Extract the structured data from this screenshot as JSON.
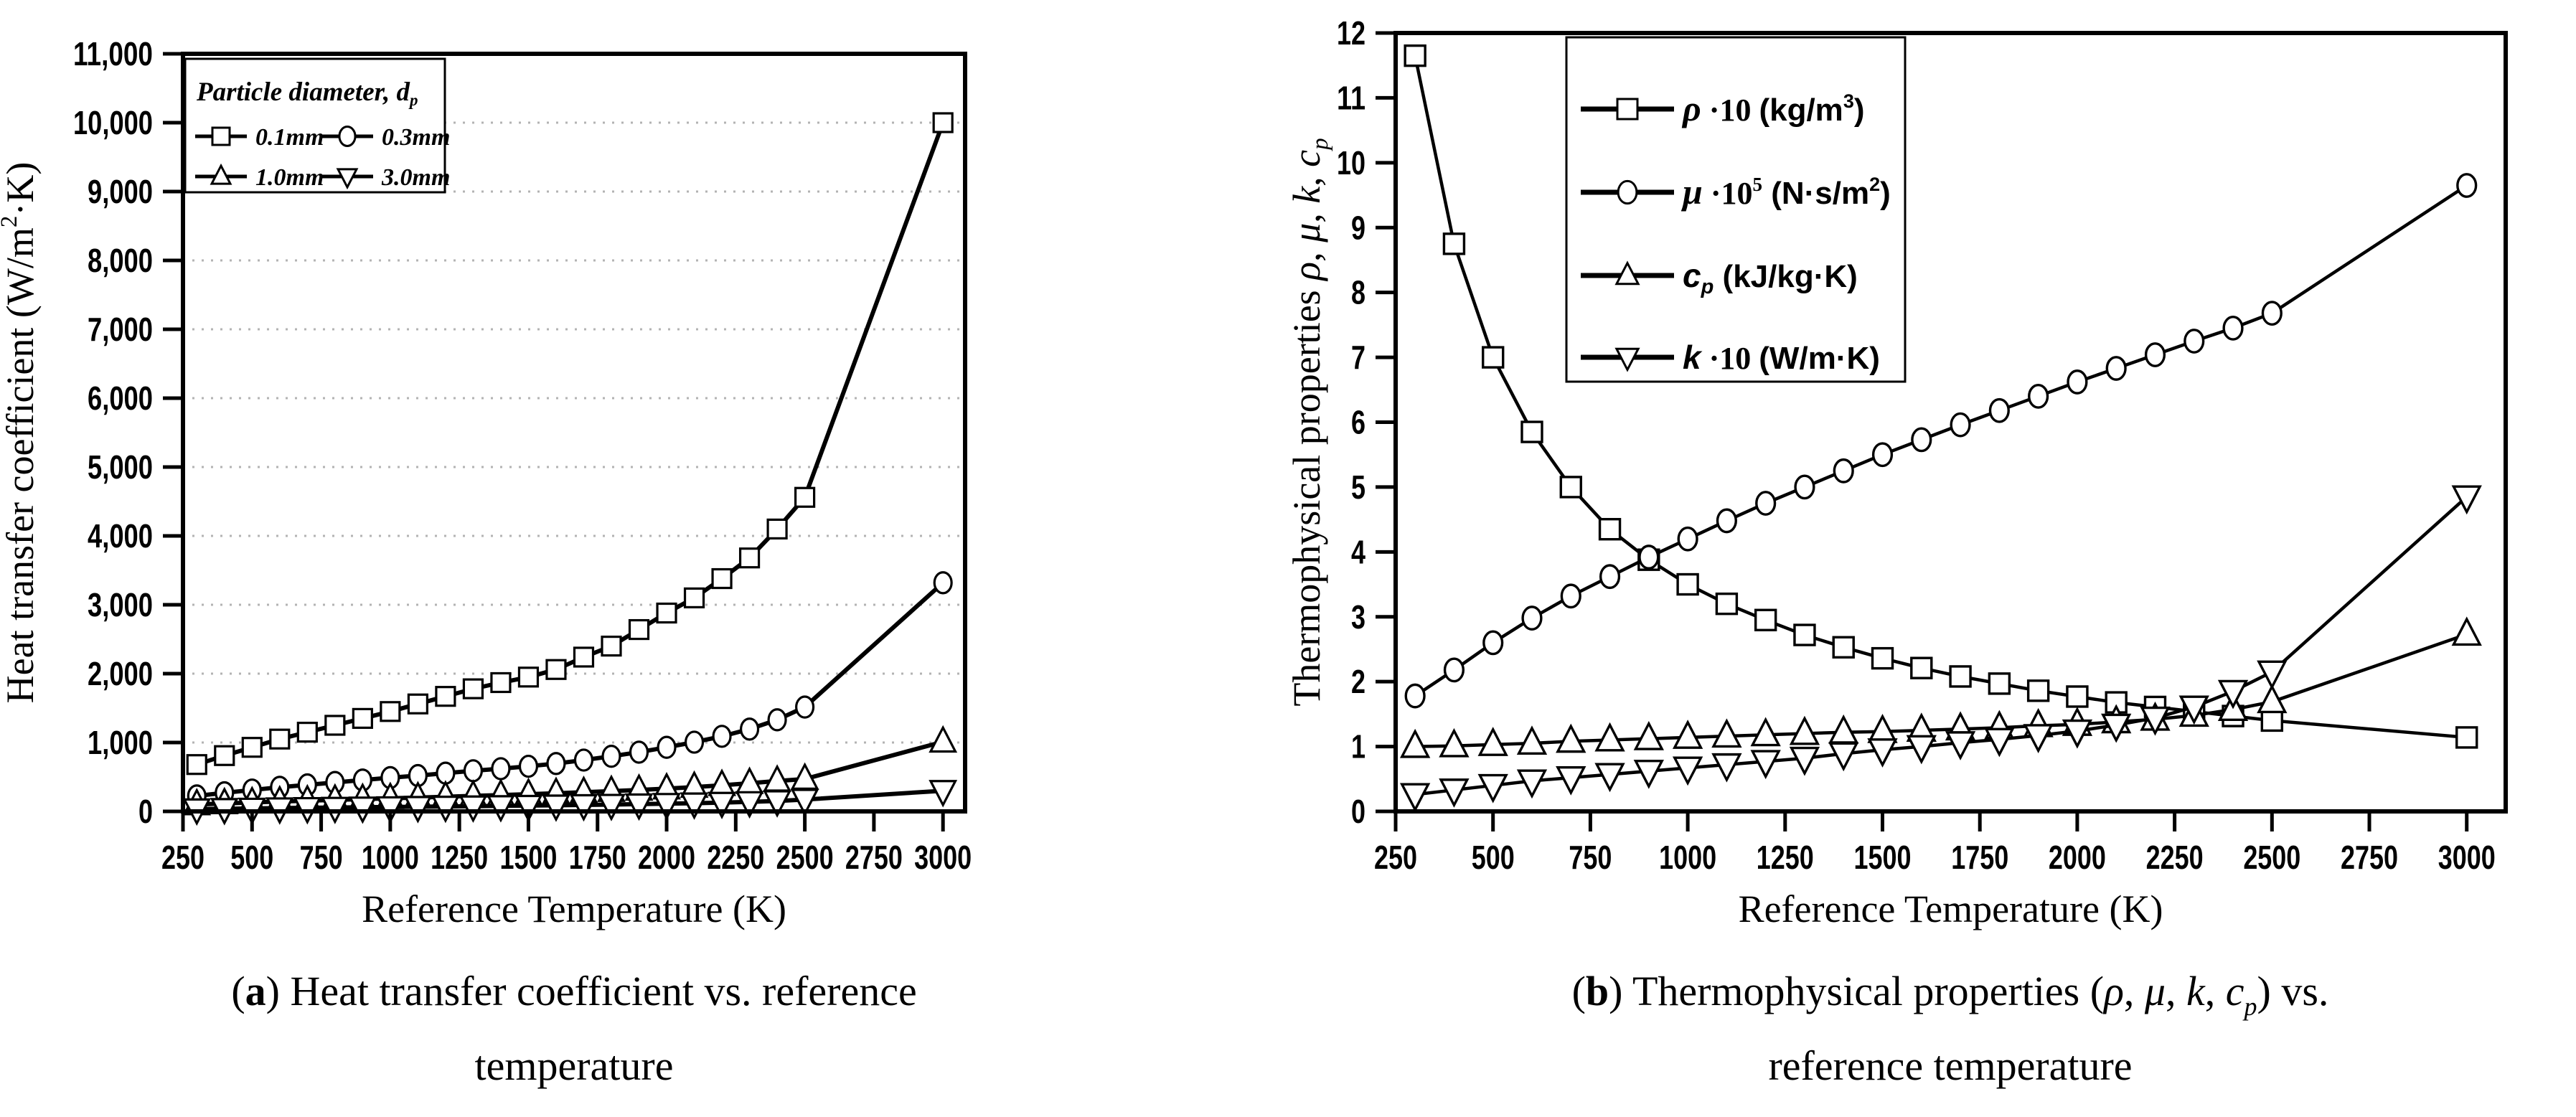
{
  "figure": {
    "background": "#ffffff",
    "ink_color": "#000000",
    "gridline_color": "#b3b3b3",
    "panels": [
      {
        "id": "a",
        "caption": {
          "line1_parts": [
            {
              "t": "("
            },
            {
              "t": "a",
              "b": true
            },
            {
              "t": ") Heat transfer coefficient vs. reference"
            }
          ],
          "line2": "temperature"
        }
      },
      {
        "id": "b",
        "caption": {
          "line1_parts": [
            {
              "t": "("
            },
            {
              "t": "b",
              "b": true
            },
            {
              "t": ") Thermophysical properties ("
            },
            {
              "t": "ρ",
              "i": true
            },
            {
              "t": ", "
            },
            {
              "t": "μ",
              "i": true
            },
            {
              "t": ", "
            },
            {
              "t": "k",
              "i": true
            },
            {
              "t": ", "
            },
            {
              "t": "c",
              "i": true
            },
            {
              "t": "p",
              "i": true,
              "sub": true
            },
            {
              "t": ") vs."
            }
          ],
          "line2": "reference temperature"
        }
      }
    ]
  },
  "chart_data": [
    {
      "id": "a",
      "type": "line",
      "title": "",
      "xlabel": "Reference Temperature (K)",
      "ylabel_parts": [
        {
          "t": "Heat transfer coefficient (W/m"
        },
        {
          "t": "2",
          "sup": true
        },
        {
          "t": "·K)"
        }
      ],
      "xlim": [
        250,
        3080
      ],
      "ylim": [
        0,
        11000
      ],
      "xticks": [
        250,
        500,
        750,
        1000,
        1250,
        1500,
        1750,
        2000,
        2250,
        2500,
        2750,
        3000
      ],
      "yticks": [
        {
          "v": 0,
          "label": "0"
        },
        {
          "v": 1000,
          "label": "1,000"
        },
        {
          "v": 2000,
          "label": "2,000"
        },
        {
          "v": 3000,
          "label": "3,000"
        },
        {
          "v": 4000,
          "label": "4,000"
        },
        {
          "v": 5000,
          "label": "5,000"
        },
        {
          "v": 6000,
          "label": "6,000"
        },
        {
          "v": 7000,
          "label": "7,000"
        },
        {
          "v": 8000,
          "label": "8,000"
        },
        {
          "v": 9000,
          "label": "9,000"
        },
        {
          "v": 10000,
          "label": "10,000"
        },
        {
          "v": 11000,
          "label": "11,000"
        }
      ],
      "grid": "horizontal-dotted",
      "grid_y": [
        1000,
        2000,
        3000,
        4000,
        5000,
        6000,
        7000,
        8000,
        9000,
        10000
      ],
      "legend_position": "top-left",
      "legend": {
        "title_parts": [
          {
            "t": "Particle diameter, d"
          },
          {
            "t": "p",
            "sub": true
          }
        ],
        "entries": [
          {
            "label": "0.1mm",
            "marker": "square"
          },
          {
            "label": "0.3mm",
            "marker": "circle"
          },
          {
            "label": "1.0mm",
            "marker": "triangle-up"
          },
          {
            "label": "3.0mm",
            "marker": "triangle-down"
          }
        ]
      },
      "x": [
        300,
        400,
        500,
        600,
        700,
        800,
        900,
        1000,
        1100,
        1200,
        1300,
        1400,
        1500,
        1600,
        1700,
        1800,
        1900,
        2000,
        2100,
        2200,
        2300,
        2400,
        2500,
        3000
      ],
      "series": [
        {
          "name": "0.1mm",
          "marker": "square",
          "values": [
            680,
            810,
            930,
            1050,
            1150,
            1250,
            1350,
            1450,
            1560,
            1670,
            1780,
            1870,
            1950,
            2060,
            2240,
            2400,
            2640,
            2880,
            3100,
            3380,
            3680,
            4100,
            4560,
            10000
          ]
        },
        {
          "name": "0.3mm",
          "marker": "circle",
          "values": [
            225,
            270,
            310,
            350,
            385,
            420,
            455,
            490,
            520,
            555,
            590,
            620,
            655,
            695,
            745,
            800,
            860,
            930,
            1005,
            1090,
            1195,
            1330,
            1515,
            3320
          ]
        },
        {
          "name": "1.0mm",
          "marker": "triangle-up",
          "values": [
            100,
            115,
            130,
            143,
            155,
            167,
            178,
            190,
            201,
            213,
            225,
            237,
            250,
            264,
            278,
            294,
            311,
            330,
            353,
            379,
            409,
            442,
            470,
            1010
          ]
        },
        {
          "name": "3.0mm",
          "marker": "triangle-down",
          "values": [
            33,
            38,
            43,
            48,
            52,
            56,
            60,
            64,
            68,
            72,
            76,
            80,
            84,
            89,
            94,
            99,
            105,
            112,
            119,
            128,
            138,
            151,
            172,
            300
          ]
        }
      ]
    },
    {
      "id": "b",
      "type": "line",
      "title": "",
      "xlabel": "Reference Temperature (K)",
      "ylabel_parts": [
        {
          "t": "Thermophysical properties "
        },
        {
          "t": "ρ",
          "i": true
        },
        {
          "t": ", "
        },
        {
          "t": "μ",
          "i": true
        },
        {
          "t": ", "
        },
        {
          "t": "k",
          "i": true
        },
        {
          "t": ", "
        },
        {
          "t": "c",
          "i": true
        },
        {
          "t": "p",
          "i": true,
          "sub": true
        }
      ],
      "xlim": [
        250,
        3100
      ],
      "ylim": [
        0,
        12
      ],
      "xticks": [
        250,
        500,
        750,
        1000,
        1250,
        1500,
        1750,
        2000,
        2250,
        2500,
        2750,
        3000
      ],
      "yticks": [
        {
          "v": 0,
          "label": "0"
        },
        {
          "v": 1,
          "label": "1"
        },
        {
          "v": 2,
          "label": "2"
        },
        {
          "v": 3,
          "label": "3"
        },
        {
          "v": 4,
          "label": "4"
        },
        {
          "v": 5,
          "label": "5"
        },
        {
          "v": 6,
          "label": "6"
        },
        {
          "v": 7,
          "label": "7"
        },
        {
          "v": 8,
          "label": "8"
        },
        {
          "v": 9,
          "label": "9"
        },
        {
          "v": 10,
          "label": "10"
        },
        {
          "v": 11,
          "label": "11"
        },
        {
          "v": 12,
          "label": "12"
        }
      ],
      "grid": "none",
      "legend_position": "top-left",
      "legend": {
        "entries": [
          {
            "name": "rho x10 (kg/m3)",
            "marker": "square",
            "label_parts": [
              {
                "t": "ρ",
                "st": "g"
              },
              {
                "t": " ·10 ",
                "st": "p"
              },
              {
                "t": "(kg/m",
                "st": "b"
              },
              {
                "t": "3",
                "st": "b",
                "sup": true
              },
              {
                "t": ")",
                "st": "b"
              }
            ]
          },
          {
            "name": "mu x10^5 (N·s/m2)",
            "marker": "circle",
            "label_parts": [
              {
                "t": "μ",
                "st": "g"
              },
              {
                "t": " ·10",
                "st": "p"
              },
              {
                "t": "5",
                "st": "p",
                "sup": true
              },
              {
                "t": " (N·s/m",
                "st": "b"
              },
              {
                "t": "2",
                "st": "b",
                "sup": true
              },
              {
                "t": ")",
                "st": "b"
              }
            ]
          },
          {
            "name": "cp (kJ/kg·K)",
            "marker": "triangle-up",
            "label_parts": [
              {
                "t": "c",
                "st": "bi"
              },
              {
                "t": "p",
                "st": "bi",
                "sub": true
              },
              {
                "t": "  (kJ/kg·K)",
                "st": "b"
              }
            ]
          },
          {
            "name": "k x10 (W/m·K)",
            "marker": "triangle-down",
            "label_parts": [
              {
                "t": "k",
                "st": "bi"
              },
              {
                "t": " ·10 ",
                "st": "p"
              },
              {
                "t": "(W/m·K)",
                "st": "b"
              }
            ]
          }
        ]
      },
      "x": [
        300,
        400,
        500,
        600,
        700,
        800,
        900,
        1000,
        1100,
        1200,
        1300,
        1400,
        1500,
        1600,
        1700,
        1800,
        1900,
        2000,
        2100,
        2200,
        2300,
        2400,
        2500,
        3000
      ],
      "series": [
        {
          "name": "rho x10 (kg/m3)",
          "marker": "square",
          "values": [
            11.65,
            8.75,
            7.0,
            5.85,
            5.0,
            4.35,
            3.88,
            3.5,
            3.2,
            2.95,
            2.72,
            2.53,
            2.36,
            2.21,
            2.08,
            1.97,
            1.86,
            1.77,
            1.68,
            1.61,
            1.54,
            1.47,
            1.4,
            1.14
          ]
        },
        {
          "name": "mu x10^5 (N·s/m2)",
          "marker": "circle",
          "values": [
            1.78,
            2.18,
            2.6,
            2.98,
            3.32,
            3.62,
            3.92,
            4.2,
            4.48,
            4.75,
            5.0,
            5.25,
            5.5,
            5.73,
            5.96,
            6.18,
            6.4,
            6.62,
            6.83,
            7.04,
            7.25,
            7.45,
            7.68,
            9.65
          ]
        },
        {
          "name": "cp (kJ/kg·K)",
          "marker": "triangle-up",
          "values": [
            1.0,
            1.01,
            1.03,
            1.05,
            1.08,
            1.1,
            1.12,
            1.14,
            1.16,
            1.18,
            1.2,
            1.22,
            1.23,
            1.25,
            1.27,
            1.29,
            1.32,
            1.34,
            1.38,
            1.42,
            1.48,
            1.57,
            1.69,
            2.73
          ]
        },
        {
          "name": "k x10 (W/m·K)",
          "marker": "triangle-down",
          "values": [
            0.26,
            0.33,
            0.4,
            0.47,
            0.52,
            0.57,
            0.62,
            0.67,
            0.72,
            0.77,
            0.82,
            0.89,
            0.95,
            1.0,
            1.06,
            1.11,
            1.17,
            1.24,
            1.33,
            1.44,
            1.61,
            1.85,
            2.15,
            4.85
          ]
        }
      ]
    }
  ]
}
